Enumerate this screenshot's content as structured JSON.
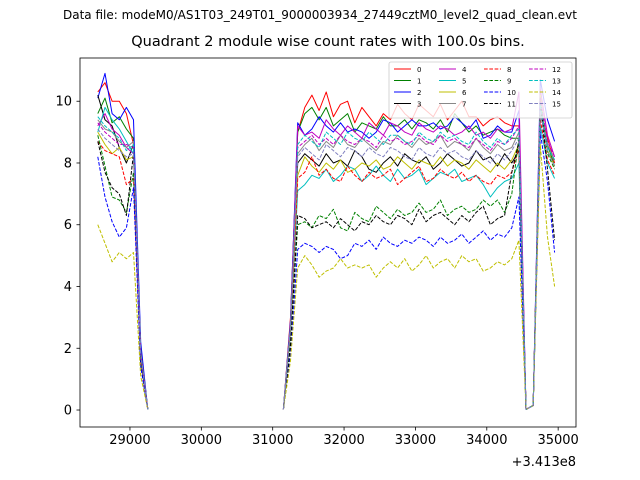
{
  "figure": {
    "suptitle": "Data file: modeM0/AS1T03_249T01_9000003934_27449cztM0_level2_quad_clean.evt"
  },
  "chart_data": {
    "type": "line",
    "title": "Quadrant 2 module wise count rates with 100.0s bins.",
    "xlabel": "",
    "ylabel": "",
    "x_offset_label": "+3.413e8",
    "xlim": [
      28300,
      35250
    ],
    "ylim": [
      -0.55,
      11.4
    ],
    "xticks": [
      29000,
      30000,
      31000,
      32000,
      33000,
      34000,
      35000
    ],
    "yticks": [
      0,
      2,
      4,
      6,
      8,
      10
    ],
    "grid": false,
    "legend": {
      "placement": "top-right",
      "columns": 4
    },
    "segments": [
      {
        "x": [
          28550,
          28650,
          28750,
          28850,
          28950,
          29050,
          29150,
          29250
        ]
      },
      {
        "x": [
          31150,
          31250,
          31350,
          31450,
          31550,
          31650,
          31750,
          31850,
          31950,
          32050,
          32150,
          32250,
          32350,
          32450,
          32550,
          32650,
          32750,
          32850,
          32950,
          33050,
          33150,
          33250,
          33350,
          33450,
          33550,
          33650,
          33750,
          33850,
          33950,
          34050,
          34150,
          34250,
          34350,
          34450,
          34550,
          34650,
          34750,
          34850,
          34950
        ]
      }
    ],
    "series": [
      {
        "name": "0",
        "color": "#ff0000",
        "dash": "solid",
        "values": [
          [
            10.3,
            10.6,
            10.0,
            10.0,
            9.6,
            8.6,
            1.8,
            0.02
          ],
          [
            0.02,
            3.0,
            9.0,
            9.8,
            10.2,
            9.7,
            10.3,
            9.5,
            9.9,
            10.0,
            9.3,
            9.8,
            9.5,
            9.2,
            9.6,
            9.4,
            9.9,
            9.6,
            9.4,
            9.9,
            9.7,
            9.5,
            9.9,
            9.4,
            9.7,
            10.0,
            9.5,
            9.5,
            9.2,
            9.4,
            9.5,
            9.3,
            9.2,
            9.2,
            0.02,
            0.15,
            9.8,
            8.8,
            8.0
          ]
        ]
      },
      {
        "name": "1",
        "color": "#008000",
        "dash": "solid",
        "values": [
          [
            9.6,
            10.1,
            9.3,
            9.5,
            9.1,
            8.8,
            2.0,
            0.02
          ],
          [
            0.02,
            2.8,
            9.0,
            9.6,
            9.8,
            9.4,
            9.8,
            9.2,
            9.4,
            9.6,
            9.0,
            9.3,
            9.2,
            9.1,
            9.5,
            9.2,
            9.2,
            9.4,
            9.1,
            9.4,
            9.3,
            9.1,
            9.4,
            9.0,
            9.6,
            9.3,
            9.0,
            9.2,
            8.9,
            9.0,
            9.1,
            8.9,
            8.8,
            8.8,
            0.02,
            0.15,
            9.6,
            8.6,
            7.9
          ]
        ]
      },
      {
        "name": "2",
        "color": "#0000ff",
        "dash": "solid",
        "values": [
          [
            10.1,
            10.9,
            9.6,
            9.4,
            9.8,
            9.4,
            2.2,
            0.02
          ],
          [
            0.02,
            2.9,
            9.3,
            8.9,
            9.1,
            9.5,
            9.2,
            9.0,
            9.3,
            9.0,
            9.1,
            9.0,
            8.8,
            9.0,
            9.4,
            9.3,
            9.0,
            9.2,
            9.4,
            9.2,
            9.2,
            9.3,
            9.1,
            9.2,
            9.5,
            9.3,
            9.1,
            9.4,
            8.8,
            8.9,
            9.2,
            9.0,
            9.0,
            9.7,
            0.02,
            0.15,
            10.7,
            9.4,
            8.7
          ]
        ]
      },
      {
        "name": "3",
        "color": "#000000",
        "dash": "solid",
        "values": [
          [
            10.2,
            9.4,
            9.2,
            8.5,
            8.0,
            8.6,
            1.9,
            0.02
          ],
          [
            0.02,
            2.6,
            8.0,
            8.3,
            8.1,
            7.9,
            8.3,
            8.0,
            8.1,
            7.9,
            8.4,
            8.2,
            7.8,
            7.7,
            8.0,
            8.2,
            7.9,
            8.3,
            8.1,
            8.0,
            8.2,
            7.8,
            8.0,
            8.3,
            8.1,
            7.9,
            8.0,
            8.4,
            8.1,
            8.2,
            7.9,
            8.3,
            8.0,
            8.4,
            0.02,
            0.15,
            9.8,
            8.4,
            7.9
          ]
        ]
      },
      {
        "name": "4",
        "color": "#bf00bf",
        "dash": "solid",
        "values": [
          [
            9.2,
            9.6,
            9.1,
            8.9,
            8.5,
            8.3,
            1.8,
            0.02
          ],
          [
            0.02,
            2.8,
            9.2,
            8.9,
            9.0,
            8.8,
            9.4,
            9.1,
            8.9,
            9.2,
            9.0,
            8.8,
            9.3,
            9.1,
            8.9,
            9.3,
            9.2,
            9.0,
            8.9,
            9.3,
            9.1,
            9.0,
            9.2,
            9.1,
            8.9,
            9.0,
            9.2,
            8.9,
            9.0,
            8.8,
            9.1,
            9.0,
            9.1,
            10.3,
            0.02,
            0.15,
            10.4,
            8.9,
            8.2
          ]
        ]
      },
      {
        "name": "5",
        "color": "#00bfbf",
        "dash": "solid",
        "values": [
          [
            9.0,
            9.8,
            9.4,
            9.1,
            8.7,
            8.3,
            1.8,
            0.02
          ],
          [
            0.02,
            2.5,
            7.1,
            7.3,
            7.6,
            7.5,
            7.8,
            7.4,
            7.6,
            7.9,
            7.8,
            7.4,
            7.6,
            7.9,
            7.6,
            7.4,
            7.8,
            7.5,
            7.6,
            7.8,
            7.3,
            7.5,
            7.7,
            7.6,
            7.8,
            7.4,
            7.5,
            7.6,
            7.3,
            6.9,
            7.2,
            7.4,
            7.5,
            8.0,
            0.02,
            0.15,
            9.2,
            8.0,
            7.5
          ]
        ]
      },
      {
        "name": "6",
        "color": "#bfbf00",
        "dash": "solid",
        "values": [
          [
            9.0,
            8.6,
            8.3,
            8.5,
            8.1,
            8.2,
            1.7,
            0.02
          ],
          [
            0.02,
            2.6,
            7.6,
            8.2,
            7.9,
            7.7,
            8.0,
            7.8,
            8.1,
            7.7,
            7.8,
            8.0,
            7.9,
            8.1,
            7.8,
            7.9,
            8.2,
            8.0,
            7.8,
            8.1,
            8.0,
            7.9,
            8.2,
            7.9,
            8.1,
            8.0,
            7.8,
            8.1,
            7.9,
            7.7,
            8.0,
            7.8,
            8.1,
            8.6,
            0.02,
            0.15,
            10.2,
            8.4,
            7.9
          ]
        ]
      },
      {
        "name": "7",
        "color": "#888888",
        "dash": "solid",
        "values": [
          [
            9.4,
            9.1,
            9.0,
            8.7,
            8.5,
            8.7,
            1.9,
            0.02
          ],
          [
            0.02,
            2.7,
            8.3,
            8.6,
            8.8,
            8.4,
            8.7,
            8.5,
            8.9,
            8.6,
            8.5,
            8.8,
            8.6,
            8.4,
            8.7,
            8.6,
            8.9,
            8.7,
            8.5,
            8.8,
            8.6,
            8.7,
            8.9,
            8.5,
            8.7,
            8.6,
            8.4,
            8.8,
            8.5,
            8.3,
            8.6,
            8.4,
            8.5,
            9.0,
            0.02,
            0.15,
            9.6,
            8.6,
            8.1
          ]
        ]
      },
      {
        "name": "8",
        "color": "#ff0000",
        "dash": "dashed",
        "values": [
          [
            8.7,
            8.4,
            8.3,
            8.2,
            7.3,
            7.5,
            1.6,
            0.02
          ],
          [
            0.02,
            2.5,
            7.5,
            7.7,
            8.2,
            7.6,
            7.8,
            7.5,
            7.4,
            7.9,
            7.6,
            7.4,
            7.7,
            7.5,
            7.6,
            7.8,
            7.3,
            7.5,
            7.7,
            7.9,
            7.4,
            7.5,
            7.8,
            7.6,
            7.5,
            7.7,
            7.4,
            7.6,
            7.4,
            7.3,
            7.6,
            7.5,
            7.7,
            8.5,
            0.02,
            0.15,
            9.4,
            8.1,
            7.6
          ]
        ]
      },
      {
        "name": "9",
        "color": "#008000",
        "dash": "dashed",
        "values": [
          [
            8.9,
            7.9,
            6.9,
            6.8,
            6.4,
            7.7,
            1.5,
            0.02
          ],
          [
            0.02,
            2.2,
            6.0,
            6.1,
            5.9,
            6.3,
            6.2,
            6.5,
            5.9,
            5.8,
            6.4,
            6.2,
            6.1,
            6.6,
            6.4,
            6.2,
            6.5,
            6.3,
            6.4,
            6.7,
            6.4,
            6.5,
            6.8,
            6.3,
            6.5,
            6.6,
            6.4,
            6.5,
            6.8,
            6.6,
            6.8,
            6.4,
            7.0,
            8.8,
            0.02,
            0.15,
            10.1,
            8.3,
            7.8
          ]
        ]
      },
      {
        "name": "10",
        "color": "#0000ff",
        "dash": "dashed",
        "values": [
          [
            8.2,
            6.9,
            6.1,
            5.6,
            5.9,
            7.2,
            1.4,
            0.02
          ],
          [
            0.02,
            1.8,
            5.2,
            5.4,
            5.3,
            5.1,
            5.3,
            5.2,
            4.9,
            5.0,
            5.4,
            5.3,
            5.5,
            5.2,
            5.6,
            5.4,
            5.3,
            5.5,
            5.4,
            5.6,
            5.5,
            5.3,
            5.6,
            5.4,
            5.5,
            5.7,
            5.4,
            5.6,
            5.8,
            5.5,
            5.7,
            5.6,
            5.9,
            6.9,
            0.02,
            0.15,
            9.0,
            7.4,
            5.1
          ]
        ]
      },
      {
        "name": "11",
        "color": "#000000",
        "dash": "dashed",
        "values": [
          [
            8.7,
            7.7,
            7.2,
            7.0,
            6.3,
            8.3,
            1.7,
            0.02
          ],
          [
            0.02,
            2.1,
            6.3,
            6.2,
            5.9,
            6.0,
            6.1,
            5.9,
            6.2,
            6.0,
            5.8,
            6.1,
            6.0,
            6.3,
            6.1,
            6.0,
            6.3,
            6.2,
            6.0,
            6.5,
            6.1,
            6.3,
            6.4,
            6.2,
            6.0,
            6.3,
            6.1,
            6.4,
            6.6,
            6.0,
            6.2,
            6.3,
            7.7,
            8.7,
            0.02,
            0.15,
            10.0,
            7.8,
            5.5
          ]
        ]
      },
      {
        "name": "12",
        "color": "#bf00bf",
        "dash": "dashed",
        "values": [
          [
            9.3,
            9.0,
            8.8,
            8.6,
            8.6,
            8.5,
            1.8,
            0.02
          ],
          [
            0.02,
            2.7,
            8.5,
            8.7,
            8.9,
            8.6,
            8.8,
            8.6,
            8.9,
            8.7,
            8.6,
            8.8,
            8.7,
            8.5,
            8.9,
            8.7,
            8.8,
            8.6,
            8.7,
            8.9,
            8.7,
            8.6,
            8.9,
            8.7,
            8.8,
            8.6,
            8.5,
            8.8,
            8.6,
            8.4,
            8.7,
            8.6,
            8.8,
            9.2,
            0.02,
            0.15,
            10.1,
            8.7,
            8.2
          ]
        ]
      },
      {
        "name": "13",
        "color": "#00bfbf",
        "dash": "dashed",
        "values": [
          [
            9.5,
            9.2,
            9.0,
            8.8,
            8.4,
            8.6,
            1.8,
            0.02
          ],
          [
            0.02,
            2.7,
            8.6,
            8.9,
            8.7,
            8.5,
            9.0,
            8.8,
            8.6,
            9.0,
            8.8,
            8.7,
            9.0,
            8.8,
            8.6,
            8.9,
            8.9,
            8.7,
            8.6,
            9.0,
            8.8,
            8.7,
            9.0,
            8.8,
            8.9,
            8.7,
            8.6,
            9.0,
            8.7,
            8.5,
            8.8,
            8.6,
            8.9,
            9.1,
            0.02,
            0.15,
            9.9,
            8.5,
            8.1
          ]
        ]
      },
      {
        "name": "14",
        "color": "#bfbf00",
        "dash": "dashed",
        "values": [
          [
            6.0,
            5.4,
            4.8,
            5.1,
            4.9,
            5.1,
            1.1,
            0.02
          ],
          [
            0.02,
            1.6,
            4.6,
            5.0,
            4.7,
            4.3,
            4.5,
            4.6,
            4.9,
            4.6,
            4.7,
            4.6,
            4.7,
            4.3,
            4.6,
            4.8,
            4.6,
            4.9,
            4.5,
            4.7,
            5.0,
            4.6,
            4.8,
            4.9,
            4.6,
            5.0,
            4.8,
            4.9,
            4.5,
            4.6,
            4.8,
            4.7,
            4.9,
            5.5,
            0.02,
            0.15,
            8.6,
            5.6,
            4.0
          ]
        ]
      },
      {
        "name": "15",
        "color": "#8080c0",
        "dash": "dashed",
        "values": [
          [
            9.1,
            8.8,
            8.6,
            8.4,
            8.2,
            8.3,
            1.8,
            0.02
          ],
          [
            0.02,
            2.6,
            8.2,
            8.5,
            8.3,
            8.1,
            8.6,
            8.4,
            8.2,
            8.5,
            8.4,
            8.2,
            8.5,
            8.3,
            8.2,
            8.5,
            8.4,
            8.2,
            8.1,
            8.5,
            8.3,
            8.2,
            8.5,
            8.3,
            8.4,
            8.2,
            8.1,
            8.4,
            8.2,
            8.0,
            8.3,
            8.1,
            8.4,
            8.8,
            0.02,
            0.15,
            9.7,
            8.4,
            7.9
          ]
        ]
      }
    ]
  }
}
